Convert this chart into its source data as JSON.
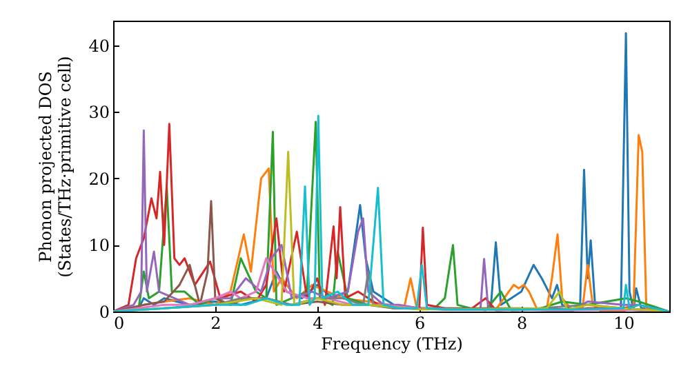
{
  "chart_data": {
    "type": "line",
    "xlabel": "Frequency (THz)",
    "ylabel": "Phonon projected DOS\n(States/THz·primitive cell)",
    "xlim": [
      0,
      10.9
    ],
    "ylim": [
      0,
      43.7
    ],
    "xticks": [
      0,
      2,
      4,
      6,
      8,
      10
    ],
    "yticks": [
      0,
      10,
      20,
      30,
      40
    ],
    "grid": false,
    "marker": "none",
    "line_style": "solid",
    "series": [
      {
        "color": "#1f77b4",
        "x": [
          0,
          0.5,
          0.6,
          0.8,
          1.0,
          1.5,
          2.0,
          2.5,
          3.0,
          3.2,
          3.4,
          3.7,
          4.0,
          4.3,
          4.6,
          4.84,
          4.95,
          5.1,
          5.5,
          6.0,
          6.5,
          7.0,
          7.4,
          7.5,
          7.6,
          7.8,
          8.0,
          8.24,
          8.4,
          8.6,
          8.7,
          8.8,
          9.0,
          9.15,
          9.23,
          9.3,
          9.36,
          9.45,
          9.6,
          9.95,
          10.05,
          10.12,
          10.2,
          10.25,
          10.35,
          10.9
        ],
        "values": [
          0,
          0.5,
          2,
          1,
          2,
          1,
          1.5,
          1,
          2,
          6,
          3,
          2,
          4,
          2,
          3,
          16,
          8,
          3,
          1,
          0.5,
          0.3,
          0.3,
          0.5,
          10.4,
          1,
          2,
          3,
          7,
          5,
          2,
          4,
          1,
          0.2,
          0.5,
          21.3,
          5,
          10.7,
          0.5,
          0,
          0,
          41.8,
          3,
          0.3,
          3.5,
          0.5,
          0
        ]
      },
      {
        "color": "#ff7f0e",
        "x": [
          0,
          0.6,
          1.0,
          1.5,
          2.0,
          2.3,
          2.56,
          2.7,
          2.9,
          3.05,
          3.15,
          3.3,
          3.6,
          3.9,
          4.2,
          4.5,
          5.0,
          5.4,
          5.7,
          5.83,
          5.95,
          6.2,
          6.6,
          7.0,
          7.5,
          7.85,
          7.95,
          8.05,
          8.15,
          8.3,
          8.5,
          8.6,
          8.71,
          8.8,
          9.0,
          9.2,
          9.3,
          9.4,
          9.6,
          10.0,
          10.2,
          10.3,
          10.37,
          10.45,
          10.9
        ],
        "values": [
          0,
          1,
          1.5,
          2,
          1,
          3,
          11.6,
          6,
          20,
          21.5,
          3,
          5,
          2,
          4,
          3,
          2,
          1.5,
          1,
          0.5,
          5,
          0.5,
          0.5,
          0.5,
          0.3,
          0.3,
          4,
          3.5,
          4,
          3,
          0.5,
          0.5,
          5,
          11.6,
          2,
          0.2,
          0.5,
          7,
          1,
          0,
          0,
          1,
          26.5,
          24,
          0.5,
          0
        ]
      },
      {
        "color": "#2ca02c",
        "x": [
          0,
          0.5,
          0.6,
          0.7,
          0.9,
          1.05,
          1.15,
          1.4,
          1.7,
          2.0,
          2.3,
          2.5,
          2.8,
          3.0,
          3.13,
          3.2,
          3.5,
          3.8,
          3.97,
          4.05,
          4.3,
          4.4,
          4.6,
          5.0,
          5.5,
          6.0,
          6.3,
          6.5,
          6.66,
          6.75,
          7.0,
          7.3,
          7.6,
          7.8,
          8.3,
          8.8,
          9.3,
          10.05,
          10.3,
          10.9
        ],
        "values": [
          0,
          0.5,
          6,
          2,
          3,
          18.8,
          3,
          3,
          1,
          2,
          1,
          8,
          3,
          2,
          27,
          1,
          2,
          3,
          28.5,
          2,
          1,
          9,
          2,
          1,
          0.5,
          0.5,
          0.5,
          2,
          10,
          1,
          0.5,
          0.2,
          3,
          0.2,
          0.3,
          1.5,
          1,
          2,
          1.5,
          0
        ]
      },
      {
        "color": "#d62728",
        "x": [
          0,
          0.3,
          0.45,
          0.6,
          0.75,
          0.85,
          0.92,
          1.0,
          1.1,
          1.2,
          1.3,
          1.4,
          1.6,
          1.9,
          2.1,
          2.5,
          2.8,
          3.0,
          3.2,
          3.35,
          3.6,
          3.8,
          4.0,
          4.15,
          4.32,
          4.38,
          4.45,
          4.55,
          4.8,
          5.2,
          5.6,
          6.0,
          6.07,
          6.15,
          6.5,
          7.0,
          7.3,
          7.5,
          8.0,
          8.5,
          9.0,
          9.3,
          10.0,
          10.3,
          10.9
        ],
        "values": [
          0,
          1,
          8,
          11,
          17,
          14,
          21,
          10,
          28.2,
          8,
          7,
          8,
          4,
          7.5,
          2,
          3,
          1.5,
          4,
          14,
          3,
          12,
          2,
          5,
          1,
          12.8,
          5,
          15.7,
          2,
          3,
          1,
          0.5,
          0.5,
          12.6,
          1,
          0.5,
          0.3,
          2,
          0.2,
          0.3,
          0.2,
          0.2,
          0.5,
          0.5,
          1,
          0
        ]
      },
      {
        "color": "#9467bd",
        "x": [
          0,
          0.4,
          0.55,
          0.6,
          0.66,
          0.8,
          0.9,
          1.2,
          1.5,
          2.0,
          2.3,
          2.6,
          2.9,
          3.1,
          3.3,
          3.5,
          3.9,
          4.2,
          4.6,
          4.8,
          4.9,
          5.0,
          5.3,
          5.6,
          6.0,
          6.5,
          7.0,
          7.2,
          7.27,
          7.35,
          7.6,
          8.0,
          8.5,
          9.0,
          9.3,
          10.0,
          10.3,
          10.9
        ],
        "values": [
          0,
          1,
          3,
          27.2,
          3,
          9,
          3,
          2,
          1,
          2,
          2,
          5,
          3,
          8,
          10,
          2,
          3,
          2,
          3,
          12,
          14,
          3,
          1,
          1,
          0.5,
          0.3,
          0.3,
          0.5,
          7.9,
          0.5,
          0.3,
          0.3,
          0.3,
          0.2,
          1.5,
          1,
          1,
          0
        ]
      },
      {
        "color": "#8c564b",
        "x": [
          0,
          0.6,
          1.0,
          1.3,
          1.5,
          1.7,
          1.85,
          1.92,
          2.0,
          2.3,
          2.6,
          3.0,
          3.5,
          4.0,
          4.5,
          5.0,
          6.0,
          7.0,
          8.0,
          9.0,
          10.0,
          10.9
        ],
        "values": [
          0,
          1,
          1.5,
          4,
          7,
          1,
          6,
          16.6,
          2,
          1,
          2,
          2,
          1,
          1.5,
          1,
          1,
          0.5,
          0.5,
          0.5,
          0.3,
          0.3,
          0
        ]
      },
      {
        "color": "#e377c2",
        "x": [
          0,
          1.0,
          1.5,
          2.0,
          2.3,
          2.5,
          2.8,
          3.0,
          3.4,
          3.8,
          4.2,
          4.7,
          5.2,
          6,
          7,
          8,
          9,
          10,
          10.9
        ],
        "values": [
          0,
          1,
          1,
          2,
          3,
          2,
          3,
          8,
          3,
          2,
          2,
          1,
          1,
          0.5,
          0.3,
          0.3,
          0.2,
          0.3,
          0
        ]
      },
      {
        "color": "#7f7f7f",
        "x": [
          0,
          1,
          2,
          2.5,
          3,
          3.5,
          4,
          4.5,
          4.9,
          5.0,
          5.1,
          5.5,
          6.5,
          8,
          9.3,
          10,
          10.9
        ],
        "values": [
          0,
          0.5,
          1,
          2,
          2,
          1,
          2,
          2,
          1,
          6,
          1,
          0.5,
          0.3,
          0.3,
          1,
          0.5,
          0
        ]
      },
      {
        "color": "#bcbd22",
        "x": [
          0,
          1,
          2,
          2.8,
          3.3,
          3.43,
          3.55,
          4.0,
          4.5,
          5.0,
          6,
          8.5,
          8.75,
          8.9,
          9.3,
          10,
          10.9
        ],
        "values": [
          0,
          0.5,
          1,
          2,
          1,
          24,
          1,
          2,
          1,
          1,
          0.3,
          0.5,
          3,
          0.3,
          1,
          0.5,
          0
        ]
      },
      {
        "color": "#17becf",
        "x": [
          0,
          1,
          2,
          2.6,
          3,
          3.4,
          3.65,
          3.76,
          3.85,
          3.95,
          4.02,
          4.1,
          4.4,
          4.7,
          5.0,
          5.19,
          5.3,
          5.6,
          5.95,
          6.05,
          6.15,
          6.6,
          7.5,
          8,
          9,
          10.0,
          10.05,
          10.12,
          10.3,
          10.9
        ],
        "values": [
          0,
          0.5,
          1,
          1,
          2,
          1,
          1,
          18.8,
          1,
          2,
          29.4,
          2,
          3,
          1,
          1,
          18.6,
          1,
          0.5,
          0.5,
          7,
          0.5,
          0.3,
          0.3,
          0.3,
          0.3,
          0.5,
          4,
          0.5,
          1,
          0
        ]
      }
    ]
  }
}
